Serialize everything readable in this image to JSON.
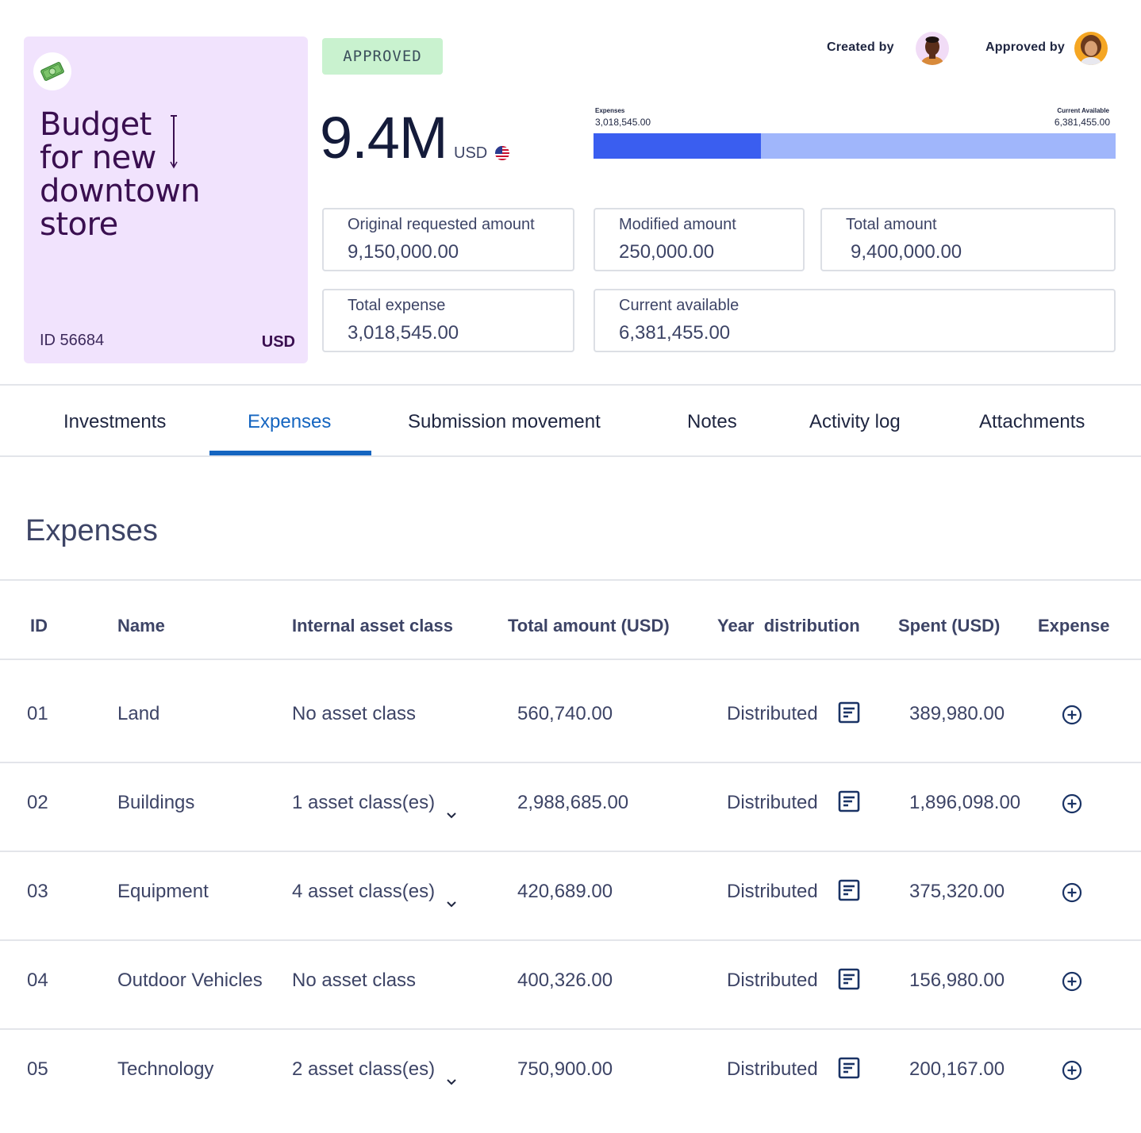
{
  "card": {
    "emoji": "💵",
    "title_lines": [
      "Budget",
      "for new",
      "downtown",
      "store"
    ],
    "id_text": "ID 56684",
    "currency": "USD"
  },
  "status": "APPROVED",
  "amount": {
    "big": "9.4M",
    "currency": "USD"
  },
  "people": {
    "created_label": "Created by",
    "approved_label": "Approved by"
  },
  "progress": {
    "left_caption": "Expenses",
    "left_value": "3,018,545.00",
    "right_caption": "Current Available",
    "right_value": "6,381,455.00",
    "fill_fraction": 0.321,
    "fill_color": "#3a5ef0",
    "track_color": "#a0b6fb"
  },
  "boxes": {
    "original": {
      "label": "Original requested amount",
      "value": "9,150,000.00"
    },
    "modified": {
      "label": "Modified amount",
      "value": "250,000.00"
    },
    "total": {
      "label": "Total amount",
      "value": "9,400,000.00"
    },
    "expense": {
      "label": "Total expense",
      "value": "3,018,545.00"
    },
    "available": {
      "label": "Current available",
      "value": "6,381,455.00"
    }
  },
  "tabs": [
    "Investments",
    "Expenses",
    "Submission movement",
    "Notes",
    "Activity log",
    "Attachments"
  ],
  "active_tab": "Expenses",
  "accent_color": "#1565c0",
  "section_title": "Expenses",
  "table": {
    "headers": [
      "ID",
      "Name",
      "Internal asset class",
      "Total amount (USD)",
      "Year  distribution",
      "Spent (USD)",
      "Expense"
    ],
    "rows": [
      {
        "id": "01",
        "name": "Land",
        "asset": "No asset class",
        "dropdown": false,
        "total": "560,740.00",
        "dist": "Distributed",
        "spent": "389,980.00"
      },
      {
        "id": "02",
        "name": "Buildings",
        "asset": "1 asset class(es)",
        "dropdown": true,
        "total": "2,988,685.00",
        "dist": "Distributed",
        "spent": "1,896,098.00"
      },
      {
        "id": "03",
        "name": "Equipment",
        "asset": "4 asset class(es)",
        "dropdown": true,
        "total": "420,689.00",
        "dist": "Distributed",
        "spent": "375,320.00"
      },
      {
        "id": "04",
        "name": "Outdoor Vehicles",
        "asset": "No asset class",
        "dropdown": false,
        "total": "400,326.00",
        "dist": "Distributed",
        "spent": "156,980.00"
      },
      {
        "id": "05",
        "name": "Technology",
        "asset": "2 asset class(es)",
        "dropdown": true,
        "total": "750,900.00",
        "dist": "Distributed",
        "spent": "200,167.00"
      }
    ]
  }
}
